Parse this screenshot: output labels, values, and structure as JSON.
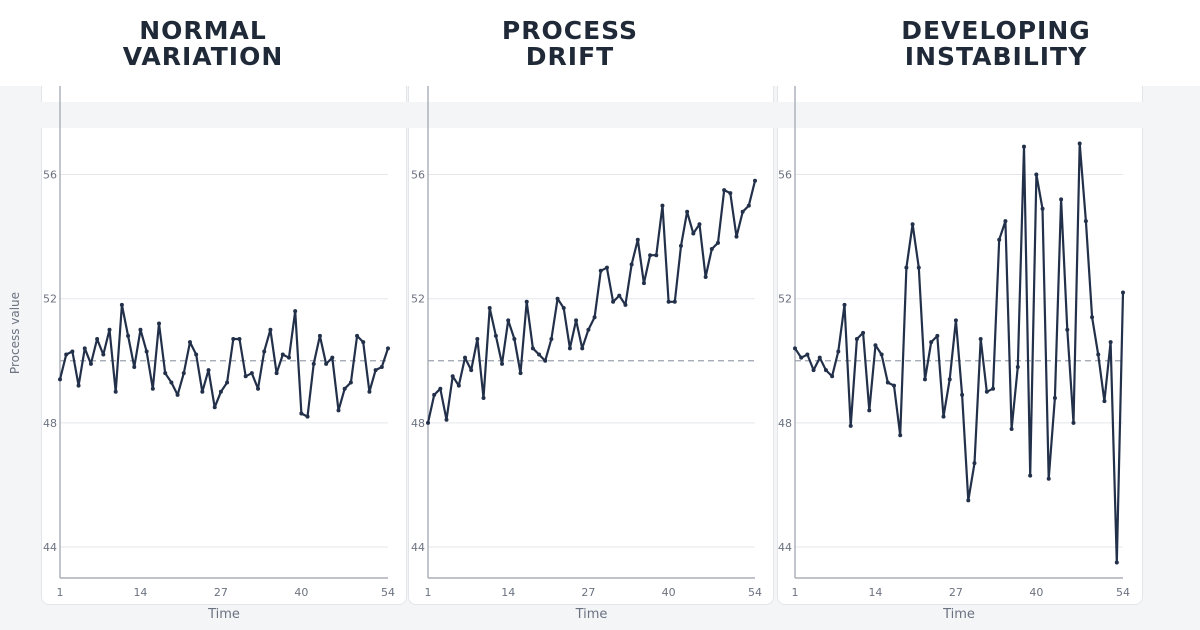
{
  "colors": {
    "line": "#22304a",
    "grid": "#e5e7eb",
    "axis": "#9aa0ab",
    "ref": "#9ca3af",
    "text": "#6b7280"
  },
  "y_axis_label": "Process value",
  "chart_data": [
    {
      "type": "line",
      "title": "NORMAL\nVARIATION",
      "xlabel": "Time",
      "ylabel": "Process value",
      "xlim": [
        1,
        54
      ],
      "ylim": [
        43,
        57.5
      ],
      "xticks": [
        1,
        14,
        27,
        40,
        54
      ],
      "yticks": [
        44,
        48,
        52,
        56
      ],
      "reference_line": 50,
      "grid": true,
      "x": [
        1,
        2,
        3,
        4,
        5,
        6,
        7,
        8,
        9,
        10,
        11,
        12,
        13,
        14,
        15,
        16,
        17,
        18,
        19,
        20,
        21,
        22,
        23,
        24,
        25,
        26,
        27,
        28,
        29,
        30,
        31,
        32,
        33,
        34,
        35,
        36,
        37,
        38,
        39,
        40,
        41,
        42,
        43,
        44,
        45,
        46,
        47,
        48,
        49,
        50,
        51,
        52,
        53,
        54
      ],
      "values": [
        49.4,
        50.2,
        50.3,
        49.2,
        50.4,
        49.9,
        50.7,
        50.2,
        51.0,
        49.0,
        51.8,
        50.8,
        49.8,
        51.0,
        50.3,
        49.1,
        51.2,
        49.6,
        49.3,
        48.9,
        49.6,
        50.6,
        50.2,
        49.0,
        49.7,
        48.5,
        49.0,
        49.3,
        50.7,
        50.7,
        49.5,
        49.6,
        49.1,
        50.3,
        51.0,
        49.6,
        50.2,
        50.1,
        51.6,
        48.3,
        48.2,
        49.9,
        50.8,
        49.9,
        50.1,
        48.4,
        49.1,
        49.3,
        50.8,
        50.6,
        49.0,
        49.7,
        49.8,
        50.4
      ]
    },
    {
      "type": "line",
      "title": "PROCESS\nDRIFT",
      "xlabel": "Time",
      "xlim": [
        1,
        54
      ],
      "ylim": [
        43,
        57.5
      ],
      "xticks": [
        1,
        14,
        27,
        40,
        54
      ],
      "yticks": [
        44,
        48,
        52,
        56
      ],
      "reference_line": 50,
      "grid": true,
      "x": [
        1,
        2,
        3,
        4,
        5,
        6,
        7,
        8,
        9,
        10,
        11,
        12,
        13,
        14,
        15,
        16,
        17,
        18,
        19,
        20,
        21,
        22,
        23,
        24,
        25,
        26,
        27,
        28,
        29,
        30,
        31,
        32,
        33,
        34,
        35,
        36,
        37,
        38,
        39,
        40,
        41,
        42,
        43,
        44,
        45,
        46,
        47,
        48,
        49,
        50,
        51,
        52,
        53,
        54
      ],
      "values": [
        48.0,
        48.9,
        49.1,
        48.1,
        49.5,
        49.2,
        50.1,
        49.7,
        50.7,
        48.8,
        51.7,
        50.8,
        49.9,
        51.3,
        50.7,
        49.6,
        51.9,
        50.4,
        50.2,
        50.0,
        50.7,
        52.0,
        51.7,
        50.4,
        51.3,
        50.4,
        51.0,
        51.4,
        52.9,
        53.0,
        51.9,
        52.1,
        51.8,
        53.1,
        53.9,
        52.5,
        53.4,
        53.4,
        55.0,
        51.9,
        51.9,
        53.7,
        54.8,
        54.1,
        54.4,
        52.7,
        53.6,
        53.8,
        55.5,
        55.4,
        54.0,
        54.8,
        55.0,
        55.8
      ]
    },
    {
      "type": "line",
      "title": "DEVELOPING\nINSTABILITY",
      "xlabel": "Time",
      "xlim": [
        1,
        54
      ],
      "ylim": [
        43,
        57.5
      ],
      "xticks": [
        1,
        14,
        27,
        40,
        54
      ],
      "yticks": [
        44,
        48,
        52,
        56
      ],
      "reference_line": 50,
      "grid": true,
      "x": [
        1,
        2,
        3,
        4,
        5,
        6,
        7,
        8,
        9,
        10,
        11,
        12,
        13,
        14,
        15,
        16,
        17,
        18,
        19,
        20,
        21,
        22,
        23,
        24,
        25,
        26,
        27,
        28,
        29,
        30,
        31,
        32,
        33,
        34,
        35,
        36,
        37,
        38,
        39,
        40,
        41,
        42,
        43,
        44,
        45,
        46,
        47,
        48,
        49,
        50,
        51,
        52,
        53,
        54
      ],
      "values": [
        50.4,
        50.1,
        50.2,
        49.7,
        50.1,
        49.7,
        49.5,
        50.3,
        51.8,
        47.9,
        50.7,
        50.9,
        48.4,
        50.5,
        50.2,
        49.3,
        49.2,
        47.6,
        53.0,
        54.4,
        53.0,
        49.4,
        50.6,
        50.8,
        48.2,
        49.4,
        51.3,
        48.9,
        45.5,
        46.7,
        50.7,
        49.0,
        49.1,
        53.9,
        54.5,
        47.8,
        49.8,
        56.9,
        46.3,
        56.0,
        54.9,
        46.2,
        48.8,
        55.2,
        51.0,
        48.0,
        57.0,
        54.5,
        51.4,
        50.2,
        48.7,
        50.6,
        43.5,
        52.2
      ]
    }
  ]
}
